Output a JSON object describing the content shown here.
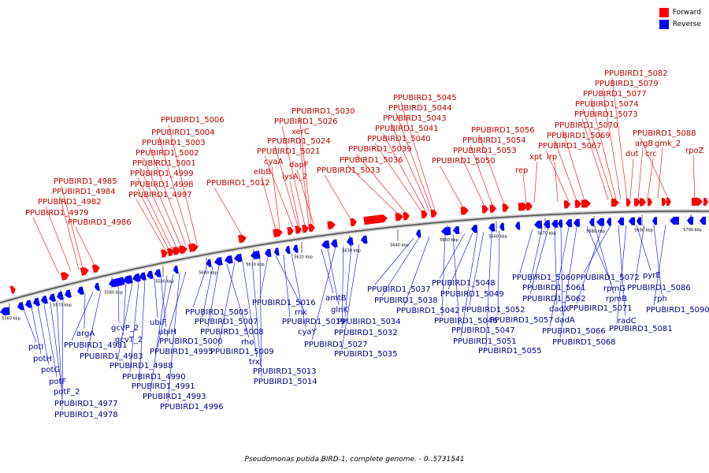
{
  "legend": {
    "forward_label": "Forward",
    "reverse_label": "Reverse",
    "forward_color": "#ff0000",
    "reverse_color": "#0000ff"
  },
  "caption": "Pseudomonas putida BIRD-1, complete genome. - 0..5731541",
  "ticks": [
    "5560 kbp",
    "5570 kbp",
    "5580 kbp",
    "5590 kbp",
    "5600 kbp",
    "5610 kbp",
    "5620 kbp",
    "5630 kbp",
    "5640 kbp",
    "5650 kbp",
    "5660 kbp",
    "5670 kbp",
    "5680 kbp",
    "5690 kbp",
    "5700 kbp"
  ],
  "forward_labels": [
    "PPUBIRD1_4979",
    "PPUBIRD1_4982",
    "PPUBIRD1_4984",
    "PPUBIRD1_4985",
    "PPUBIRD1_4986",
    "PPUBIRD1_4997",
    "PPUBIRD1_4998",
    "PPUBIRD1_4999",
    "PPUBIRD1_5001",
    "PPUBIRD1_5002",
    "PPUBIRD1_5003",
    "PPUBIRD1_5004",
    "PPUBIRD1_5006",
    "PPUBIRD1_5012",
    "elbB",
    "cyaA",
    "PPUBIRD1_5021",
    "xerC",
    "PPUBIRD1_5026",
    "PPUBIRD1_5030",
    "dapF",
    "lysA_2",
    "PPUBIRD1_5024",
    "PPUBIRD1_5033",
    "PPUBIRD1_5036",
    "PPUBIRD1_5039",
    "PPUBIRD1_5040",
    "PPUBIRD1_5041",
    "PPUBIRD1_5043",
    "PPUBIRD1_5044",
    "PPUBIRD1_5045",
    "PPUBIRD1_5050",
    "PPUBIRD1_5053",
    "PPUBIRD1_5054",
    "PPUBIRD1_5056",
    "rep",
    "xpt",
    "lrp",
    "PPUBIRD1_5067",
    "PPUBIRD1_5069",
    "PPUBIRD1_5070",
    "PPUBIRD1_5073",
    "PPUBIRD1_5074",
    "PPUBIRD1_5077",
    "PPUBIRD1_5079",
    "PPUBIRD1_5082",
    "dut",
    "argB",
    "crc",
    "gmk_2",
    "PPUBIRD1_5088",
    "rpoZ"
  ],
  "reverse_labels": [
    "potI",
    "potH",
    "potG",
    "potF",
    "potF_2",
    "PPUBIRD1_4977",
    "PPUBIRD1_4978",
    "argA",
    "PPUBIRD1_4981",
    "PPUBIRD1_4983",
    "gcvP_2",
    "gcvT_2",
    "PPUBIRD1_4988",
    "PPUBIRD1_4990",
    "PPUBIRD1_4991",
    "ubiF",
    "ubiH",
    "PPUBIRD1_4993",
    "PPUBIRD1_4995",
    "PPUBIRD1_4996",
    "PPUBIRD1_5000",
    "PPUBIRD1_5005",
    "PPUBIRD1_5007",
    "PPUBIRD1_5008",
    "rho",
    "PPUBIRD1_5009",
    "trx",
    "PPUBIRD1_5013",
    "PPUBIRD1_5014",
    "PPUBIRD1_5016",
    "rnk",
    "PPUBIRD1_5019",
    "cyaY",
    "amtB",
    "glnK",
    "PPUBIRD1_5027",
    "PPUBIRD1_5032",
    "PPUBIRD1_5034",
    "PPUBIRD1_5035",
    "PPUBIRD1_5037",
    "PPUBIRD1_5038",
    "PPUBIRD1_5042",
    "PPUBIRD1_5046",
    "PPUBIRD1_5047",
    "PPUBIRD1_5048",
    "PPUBIRD1_5049",
    "PPUBIRD1_5051",
    "PPUBIRD1_5052",
    "PPUBIRD1_5055",
    "PPUBIRD1_5057",
    "PPUBIRD1_5060",
    "PPUBIRD1_5061",
    "PPUBIRD1_5062",
    "dadX",
    "dadA",
    "PPUBIRD1_5066",
    "PPUBIRD1_5068",
    "rpmG",
    "rpmB",
    "PPUBIRD1_5071",
    "PPUBIRD1_5072",
    "radC",
    "PPUBIRD1_5081",
    "pyrE",
    "PPUBIRD1_5086",
    "rph",
    "PPUBIRD1_5090"
  ]
}
